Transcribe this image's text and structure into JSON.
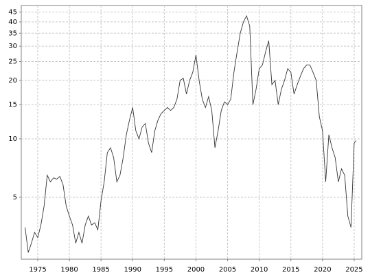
{
  "chart_data": {
    "type": "line",
    "yscale": "log",
    "grid": true,
    "color": "#333333",
    "x": [
      1973.0,
      1973.5,
      1974.0,
      1974.5,
      1975.0,
      1975.5,
      1976.0,
      1976.5,
      1977.0,
      1977.5,
      1978.0,
      1978.5,
      1979.0,
      1979.5,
      1980.0,
      1980.5,
      1981.0,
      1981.5,
      1982.0,
      1982.5,
      1983.0,
      1983.5,
      1984.0,
      1984.5,
      1985.0,
      1985.5,
      1986.0,
      1986.5,
      1987.0,
      1987.5,
      1988.0,
      1988.5,
      1989.0,
      1989.5,
      1990.0,
      1990.5,
      1991.0,
      1991.5,
      1992.0,
      1992.5,
      1993.0,
      1993.5,
      1994.0,
      1994.5,
      1995.0,
      1995.5,
      1996.0,
      1996.5,
      1997.0,
      1997.5,
      1998.0,
      1998.5,
      1999.0,
      1999.5,
      2000.0,
      2000.5,
      2001.0,
      2001.5,
      2002.0,
      2002.5,
      2003.0,
      2003.5,
      2004.0,
      2004.5,
      2005.0,
      2005.5,
      2006.0,
      2006.5,
      2007.0,
      2007.5,
      2008.0,
      2008.5,
      2009.0,
      2009.5,
      2010.0,
      2010.5,
      2011.0,
      2011.5,
      2012.0,
      2012.5,
      2013.0,
      2013.5,
      2014.0,
      2014.5,
      2015.0,
      2015.5,
      2016.0,
      2016.5,
      2017.0,
      2017.5,
      2018.0,
      2018.5,
      2019.0,
      2019.5,
      2020.0,
      2020.5,
      2021.0,
      2021.5,
      2022.0,
      2022.5,
      2023.0,
      2023.5,
      2024.0,
      2024.5,
      2025.0,
      2025.3
    ],
    "values": [
      3.5,
      2.6,
      2.9,
      3.3,
      3.1,
      3.6,
      4.5,
      6.5,
      6.0,
      6.3,
      6.2,
      6.4,
      5.8,
      4.5,
      4.0,
      3.6,
      2.9,
      3.3,
      2.9,
      3.6,
      4.0,
      3.6,
      3.7,
      3.4,
      4.8,
      6.0,
      8.5,
      9.0,
      8.0,
      6.0,
      6.5,
      8.0,
      10.5,
      12.5,
      14.5,
      11.0,
      10.0,
      11.5,
      12.0,
      9.5,
      8.5,
      11.0,
      12.5,
      13.5,
      14.0,
      14.5,
      14.0,
      14.5,
      16.0,
      20.0,
      20.5,
      17.0,
      20.0,
      22.0,
      27.0,
      20.0,
      16.0,
      14.5,
      16.5,
      14.0,
      9.0,
      11.0,
      14.0,
      15.5,
      15.0,
      16.0,
      22.0,
      28.0,
      35.0,
      40.0,
      43.0,
      38.0,
      15.0,
      18.0,
      23.0,
      24.0,
      28.0,
      32.0,
      19.0,
      20.0,
      15.0,
      18.0,
      20.0,
      23.0,
      22.0,
      17.0,
      19.0,
      21.0,
      23.0,
      24.0,
      24.0,
      22.0,
      20.0,
      13.0,
      11.0,
      6.0,
      10.5,
      9.0,
      8.0,
      6.0,
      7.0,
      6.5,
      4.0,
      3.5,
      9.5,
      9.8
    ],
    "xlim": [
      1972.4,
      2026.2
    ],
    "xticks": [
      1975,
      1980,
      1985,
      1990,
      1995,
      2000,
      2005,
      2010,
      2015,
      2020,
      2025
    ],
    "ylim": [
      2.4,
      48.6
    ],
    "yticks": [
      5,
      10,
      15,
      20,
      25,
      30,
      35,
      40,
      45
    ]
  }
}
